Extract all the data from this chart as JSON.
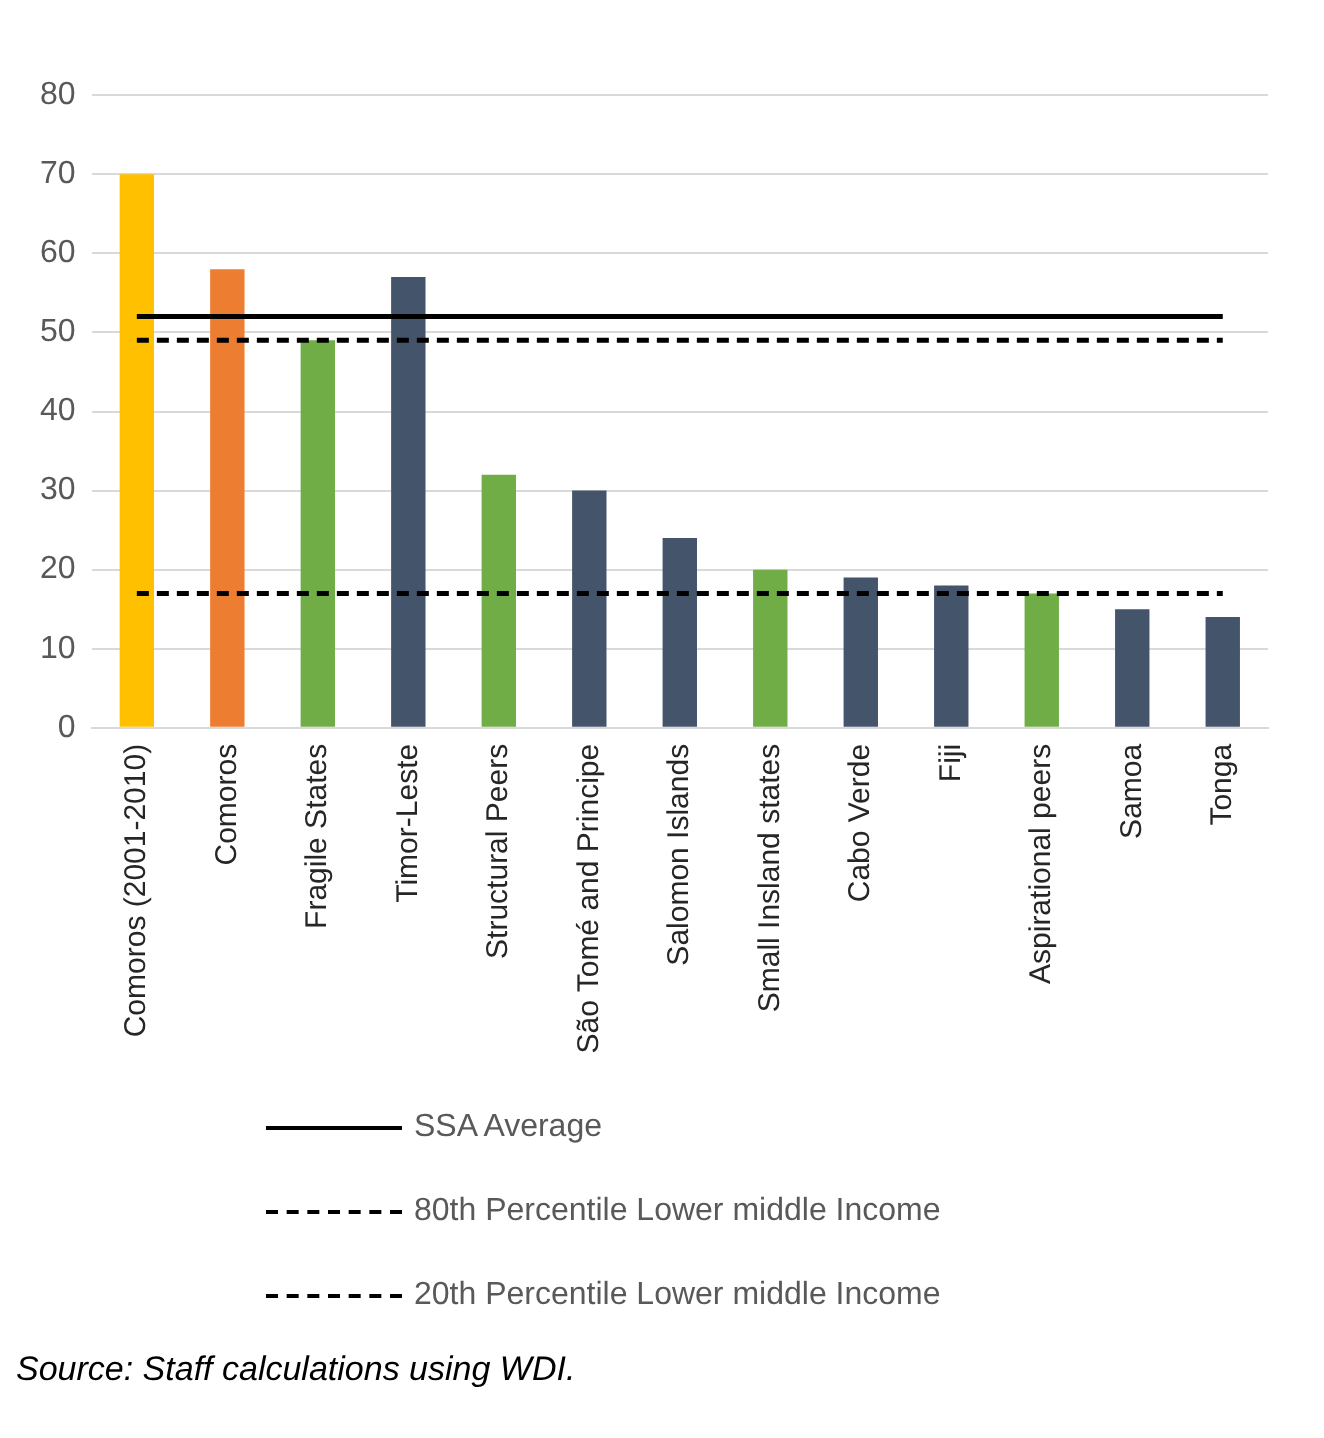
{
  "chart_data": {
    "type": "bar",
    "categories": [
      "Comoros (2001-2010)",
      "Comoros",
      "Fragile States",
      "Timor-Leste",
      "Structural Peers",
      "São Tomé and Principe",
      "Salomon Islands",
      "Small Insland states",
      "Cabo Verde",
      "Fiji",
      "Aspirational peers",
      "Samoa",
      "Tonga"
    ],
    "values": [
      70,
      58,
      49,
      57,
      32,
      30,
      24,
      20,
      19,
      18,
      17,
      15,
      14
    ],
    "colors": [
      "#ffc000",
      "#ed7d31",
      "#70ad47",
      "#44546a",
      "#70ad47",
      "#44546a",
      "#44546a",
      "#70ad47",
      "#44546a",
      "#44546a",
      "#70ad47",
      "#44546a",
      "#44546a"
    ],
    "ylim": [
      0,
      80
    ],
    "yticks": [
      0,
      10,
      20,
      30,
      40,
      50,
      60,
      70,
      80
    ],
    "grid": "y",
    "legend": "bottom",
    "ref_lines": [
      {
        "axis": "y",
        "value": 52,
        "label": "SSA Average",
        "color": "#000000",
        "line_style": "solid"
      },
      {
        "axis": "y",
        "value": 49,
        "label": "80th Percentile Lower middle Income",
        "color": "#000000",
        "line_style": "dashed"
      },
      {
        "axis": "y",
        "value": 17,
        "label": "20th Percentile Lower middle Income",
        "color": "#000000",
        "line_style": "dashed"
      }
    ],
    "annotations": [
      "Source: Staff calculations using WDI."
    ]
  }
}
